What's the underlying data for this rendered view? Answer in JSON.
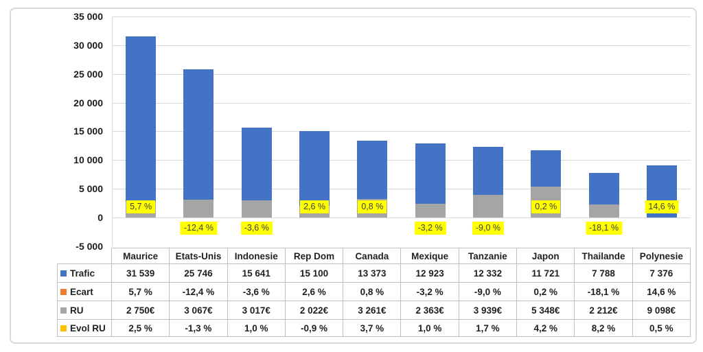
{
  "chart_data": {
    "type": "bar",
    "title": "",
    "categories": [
      "Maurice",
      "Etats-Unis",
      "Indonesie",
      "Rep Dom",
      "Canada",
      "Mexique",
      "Tanzanie",
      "Japon",
      "Thailande",
      "Polynesie"
    ],
    "series": [
      {
        "name": "Trafic",
        "color": "#4472C4",
        "values": [
          31539,
          25746,
          15641,
          15100,
          13373,
          12923,
          12332,
          11721,
          7788,
          7376
        ]
      },
      {
        "name": "Ecart",
        "color": "#ED7D31",
        "unit": "%",
        "values": [
          5.7,
          -12.4,
          -3.6,
          2.6,
          0.8,
          -3.2,
          -9.0,
          0.2,
          -18.1,
          14.6
        ]
      },
      {
        "name": "RU",
        "color": "#A5A5A5",
        "unit": "€",
        "values": [
          2750,
          3067,
          3017,
          2022,
          3261,
          2363,
          3939,
          5348,
          2212,
          9098
        ]
      },
      {
        "name": "Evol RU",
        "color": "#FFC000",
        "unit": "%",
        "values": [
          2.5,
          -1.3,
          1.0,
          -0.9,
          3.7,
          1.0,
          1.7,
          4.2,
          8.2,
          0.5
        ]
      }
    ],
    "bar_display": "Trafic (blue) and RU (grey) bars both rise from zero, overlapped; grey RU drawn in front when RU is smaller than Trafic",
    "y_axis": {
      "min": -5000,
      "max": 35000,
      "step": 5000,
      "tick_labels": [
        "35 000",
        "30 000",
        "25 000",
        "20 000",
        "15 000",
        "10 000",
        "5 000",
        "0",
        "-5 000"
      ]
    },
    "data_labels": {
      "series": "Ecart",
      "background": "#FFFF00",
      "texts": [
        "5,7 %",
        "-12,4 %",
        "-3,6 %",
        "2,6 %",
        "0,8 %",
        "-3,2 %",
        "-9,0 %",
        "0,2 %",
        "-18,1 %",
        "14,6 %"
      ]
    },
    "grid": true,
    "legend_position": "table-rows-left"
  },
  "table": {
    "columns": [
      "Maurice",
      "Etats-Unis",
      "Indonesie",
      "Rep Dom",
      "Canada",
      "Mexique",
      "Tanzanie",
      "Japon",
      "Thailande",
      "Polynesie"
    ],
    "rows": [
      {
        "label": "Trafic",
        "swatch": "#4472C4",
        "cells": [
          "31 539",
          "25 746",
          "15 641",
          "15 100",
          "13 373",
          "12 923",
          "12 332",
          "11 721",
          "7 788",
          "7 376"
        ]
      },
      {
        "label": "Ecart",
        "swatch": "#ED7D31",
        "cells": [
          "5,7 %",
          "-12,4 %",
          "-3,6 %",
          "2,6 %",
          "0,8 %",
          "-3,2 %",
          "-9,0 %",
          "0,2 %",
          "-18,1 %",
          "14,6 %"
        ]
      },
      {
        "label": "RU",
        "swatch": "#A5A5A5",
        "cells": [
          "2 750€",
          "3 067€",
          "3 017€",
          "2 022€",
          "3 261€",
          "2 363€",
          "3 939€",
          "5 348€",
          "2 212€",
          "9 098€"
        ]
      },
      {
        "label": "Evol RU",
        "swatch": "#FFC000",
        "cells": [
          "2,5 %",
          "-1,3 %",
          "1,0 %",
          "-0,9 %",
          "3,7 %",
          "1,0 %",
          "1,7 %",
          "4,2 %",
          "8,2 %",
          "0,5 %"
        ]
      }
    ]
  },
  "colors": {
    "grid": "#D9D9D9",
    "table_border": "#BFBFBF",
    "figure_border": "#D9D9D9",
    "label_background": "#FFFF00",
    "axis_text": "#1A1A1A"
  }
}
